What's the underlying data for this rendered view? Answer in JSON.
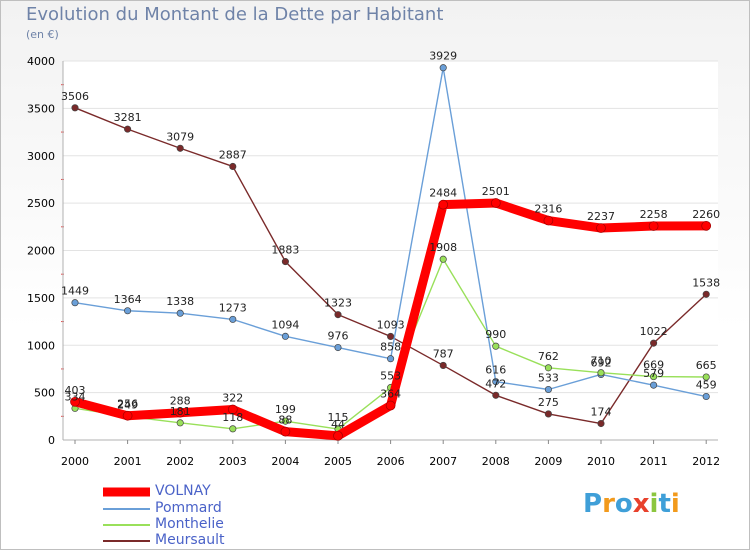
{
  "header": {
    "title": "Evolution du Montant de la Dette par Habitant",
    "unit": "(en €)"
  },
  "logo": {
    "text": "Proxiti",
    "colors": [
      "#3f9fd8",
      "#f29a1c",
      "#3f9fd8",
      "#e8412c",
      "#8cc63f",
      "#3f9fd8",
      "#f29a1c"
    ]
  },
  "colors": {
    "VOLNAY": "#ff0000",
    "Pommard": "#6a9fd8",
    "Monthelie": "#99e05a",
    "Meursault": "#7a2a2a"
  },
  "chart_data": {
    "type": "line",
    "x": [
      "2000",
      "2001",
      "2002",
      "2003",
      "2004",
      "2005",
      "2006",
      "2007",
      "2008",
      "2009",
      "2010",
      "2011",
      "2012"
    ],
    "ylim": [
      0,
      4000
    ],
    "yticks": [
      0,
      500,
      1000,
      1500,
      2000,
      2500,
      3000,
      3500,
      4000
    ],
    "legend_position": "bottom-left",
    "series": [
      {
        "name": "VOLNAY",
        "values": [
          403,
          256,
          288,
          322,
          88,
          44,
          364,
          2484,
          2501,
          2316,
          2237,
          2258,
          2260
        ]
      },
      {
        "name": "Pommard",
        "values": [
          1449,
          1364,
          1338,
          1273,
          1094,
          976,
          858,
          3929,
          616,
          533,
          692,
          579,
          459
        ]
      },
      {
        "name": "Monthelie",
        "values": [
          334,
          249,
          181,
          118,
          199,
          115,
          553,
          1908,
          990,
          762,
          710,
          669,
          665
        ]
      },
      {
        "name": "Meursault",
        "values": [
          3506,
          3281,
          3079,
          2887,
          1883,
          1323,
          1093,
          787,
          472,
          275,
          174,
          1022,
          1538
        ]
      }
    ]
  }
}
